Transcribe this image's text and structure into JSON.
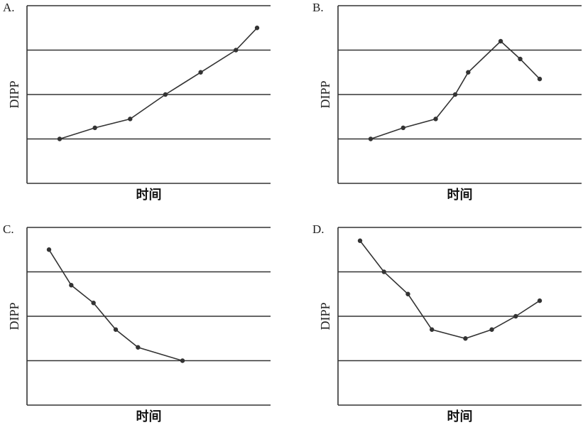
{
  "chart_data": [
    {
      "panel_label": "A.",
      "type": "line",
      "xlabel": "时间",
      "ylabel": "DIPP",
      "ylim": [
        0,
        4
      ],
      "grid": true,
      "x": [
        1,
        2,
        3,
        4,
        5,
        6,
        6.6
      ],
      "values": [
        1.0,
        1.25,
        1.45,
        2.0,
        2.5,
        3.0,
        3.5
      ]
    },
    {
      "panel_label": "B.",
      "type": "line",
      "xlabel": "时间",
      "ylabel": "DIPP",
      "ylim": [
        0,
        4
      ],
      "grid": true,
      "x": [
        1,
        2,
        3,
        3.6,
        4,
        5,
        5.6,
        6.2
      ],
      "values": [
        1.0,
        1.25,
        1.45,
        2.0,
        2.5,
        3.2,
        2.8,
        2.35
      ]
    },
    {
      "panel_label": "C.",
      "type": "line",
      "xlabel": "时间",
      "ylabel": "DIPP",
      "ylim": [
        0,
        4
      ],
      "grid": true,
      "x": [
        1,
        2,
        3,
        4,
        5,
        7
      ],
      "values": [
        3.5,
        2.7,
        2.3,
        1.7,
        1.3,
        1.0
      ]
    },
    {
      "panel_label": "D.",
      "type": "line",
      "xlabel": "时间",
      "ylabel": "DIPP",
      "ylim": [
        0,
        4
      ],
      "grid": true,
      "x": [
        1,
        2,
        3,
        4,
        5.4,
        6.5,
        7.5,
        8.5
      ],
      "values": [
        3.7,
        3.0,
        2.5,
        1.7,
        1.5,
        1.7,
        2.0,
        2.35
      ]
    }
  ]
}
